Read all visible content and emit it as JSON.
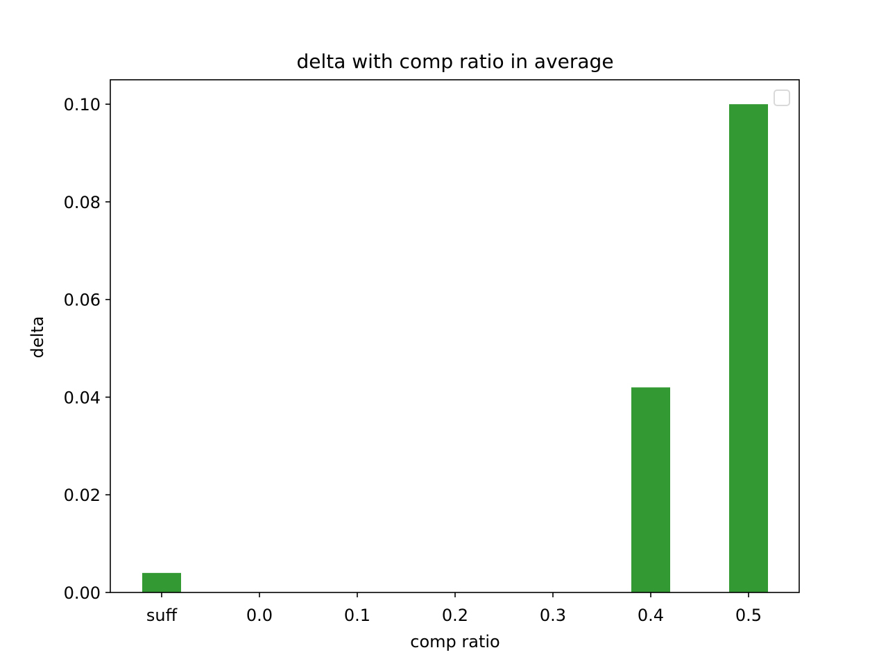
{
  "chart_data": {
    "type": "bar",
    "title": "delta with comp ratio in average",
    "xlabel": "comp ratio",
    "ylabel": "delta",
    "categories": [
      "suff",
      "0.0",
      "0.1",
      "0.2",
      "0.3",
      "0.4",
      "0.5"
    ],
    "values": [
      0.004,
      0,
      0,
      0,
      0,
      0.042,
      0.1
    ],
    "ylim": [
      0,
      0.105
    ],
    "yticks": [
      "0.00",
      "0.02",
      "0.04",
      "0.06",
      "0.08",
      "0.10"
    ],
    "bar_color": "#339933",
    "grid": false,
    "legend": {
      "placement": "top-right",
      "entries": []
    }
  }
}
